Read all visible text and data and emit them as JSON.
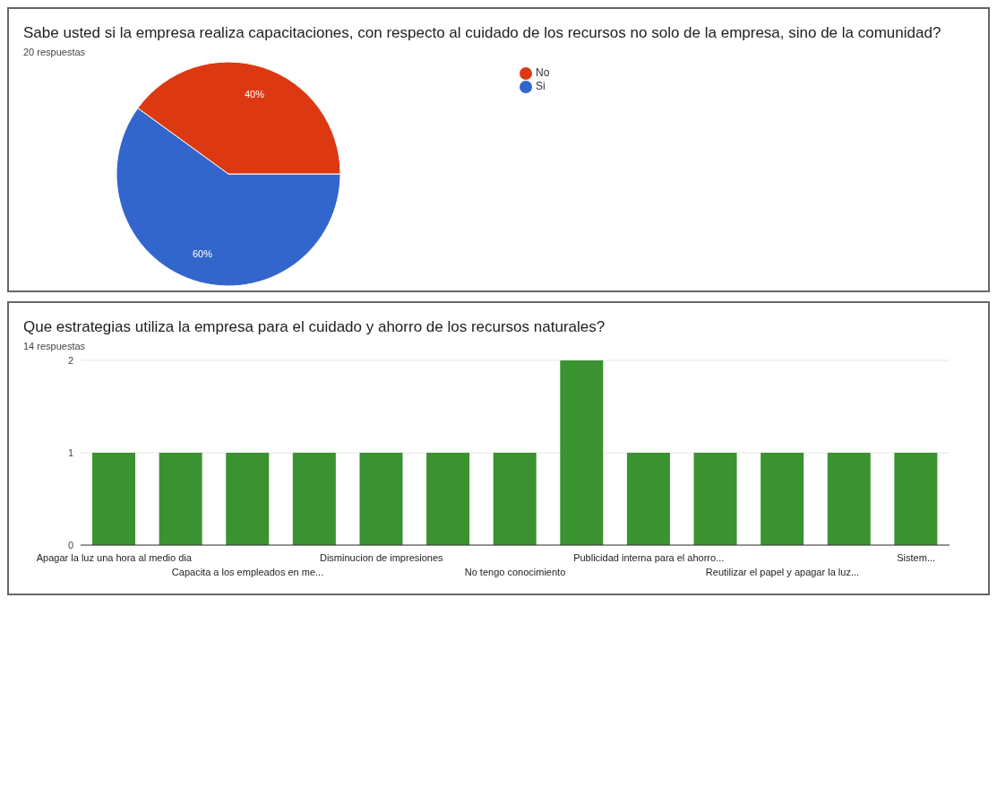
{
  "chart_data": [
    {
      "type": "pie",
      "title": "Sabe usted si la empresa realiza capacitaciones, con respecto al cuidado de los recursos no solo de la empresa, sino de la comunidad?",
      "subtitle": "20 respuestas",
      "categories": [
        "Si",
        "No"
      ],
      "values": [
        60,
        40
      ],
      "colors": [
        "#3366cc",
        "#dc3912"
      ],
      "value_labels": [
        "60%",
        "40%"
      ],
      "legend": "right"
    },
    {
      "type": "bar",
      "title": "Que estrategias utiliza la empresa para el cuidado y ahorro de los recursos naturales?",
      "subtitle": "14 respuestas",
      "categories": [
        "Apagar la luz una hora al medio dia",
        null,
        "Capacita a los empleados en me...",
        null,
        "Disminucion de impresiones",
        null,
        "No tengo conocimiento",
        null,
        "Publicidad interna para el ahorro...",
        null,
        "Reutilizar el papel y apagar la luz...",
        null,
        "Sistem..."
      ],
      "values": [
        1,
        1,
        1,
        1,
        1,
        1,
        1,
        2,
        1,
        1,
        1,
        1,
        1
      ],
      "color": "#3a9230",
      "ylim": [
        0,
        2
      ],
      "yticks": [
        0,
        1,
        2
      ],
      "grid": "y",
      "legend": false
    }
  ]
}
